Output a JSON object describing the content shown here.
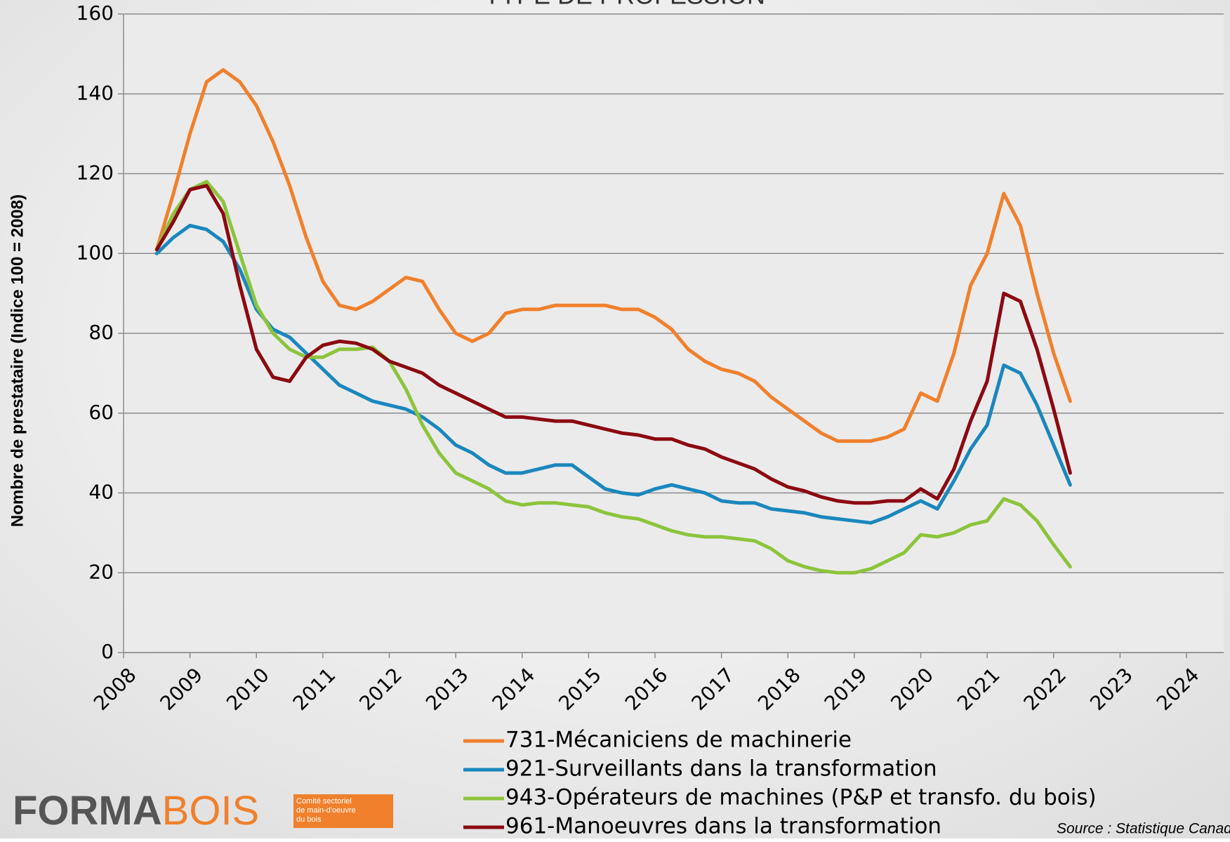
{
  "chart_data": {
    "type": "line",
    "title": "TYPE DE PROFESSION",
    "ylabel": "Nombre de prestataire (Indice 100 = 2008)",
    "x": [
      2008.5,
      2008.75,
      2009,
      2009.25,
      2009.5,
      2009.75,
      2010,
      2010.25,
      2010.5,
      2010.75,
      2011,
      2011.25,
      2011.5,
      2011.75,
      2012,
      2012.25,
      2012.5,
      2012.75,
      2013,
      2013.25,
      2013.5,
      2013.75,
      2014,
      2014.25,
      2014.5,
      2014.75,
      2015,
      2015.25,
      2015.5,
      2015.75,
      2016,
      2016.25,
      2016.5,
      2016.75,
      2017,
      2017.25,
      2017.5,
      2017.75,
      2018,
      2018.25,
      2018.5,
      2018.75,
      2019,
      2019.25,
      2019.5,
      2019.75,
      2020,
      2020.25,
      2020.5,
      2020.75,
      2021,
      2021.25,
      2021.5,
      2021.75,
      2022,
      2022.25
    ],
    "series": [
      {
        "name": "731-Mécaniciens de machinerie",
        "color": "#f0802c",
        "values": [
          101,
          115,
          130,
          143,
          146,
          143,
          137,
          128,
          117,
          104,
          93,
          87,
          86,
          88,
          91,
          94,
          93,
          86,
          80,
          78,
          80,
          85,
          86,
          86,
          87,
          87,
          87,
          87,
          86,
          86,
          84,
          81,
          76,
          73,
          71,
          70,
          68,
          64,
          61,
          58,
          55,
          53,
          53,
          53,
          54,
          56,
          65,
          63,
          75,
          92,
          100,
          115,
          107,
          90,
          75,
          63
        ]
      },
      {
        "name": "921-Surveillants dans la transformation",
        "color": "#1a87bd",
        "values": [
          100,
          104,
          107,
          106,
          103,
          96,
          86,
          81,
          79,
          75,
          71,
          67,
          65,
          63,
          62,
          61,
          59,
          56,
          52,
          50,
          47,
          45,
          45,
          46,
          47,
          47,
          44,
          41,
          40,
          39.5,
          41,
          42,
          41,
          40,
          38,
          37.5,
          37.5,
          36,
          35.5,
          35,
          34,
          33.5,
          33,
          32.5,
          34,
          36,
          38,
          36,
          43,
          51,
          57,
          72,
          70,
          62,
          52,
          42
        ]
      },
      {
        "name": "943-Opérateurs de machines (P&P et transfo. du bois)",
        "color": "#8cc43c",
        "values": [
          101,
          110,
          116,
          118,
          113,
          100,
          87,
          80,
          76,
          74,
          74,
          76,
          76,
          76.5,
          73,
          66,
          57,
          50,
          45,
          43,
          41,
          38,
          37,
          37.5,
          37.5,
          37,
          36.5,
          35,
          34,
          33.5,
          32,
          30.5,
          29.5,
          29,
          29,
          28.5,
          28,
          26,
          23,
          21.5,
          20.5,
          20,
          20,
          21,
          23,
          25,
          29.5,
          29,
          30,
          32,
          33,
          38.5,
          37,
          33,
          27,
          21.5
        ]
      },
      {
        "name": "961-Manoeuvres dans la transformation",
        "color": "#8b0a10",
        "values": [
          101,
          108,
          116,
          117,
          110,
          92,
          76,
          69,
          68,
          74,
          77,
          78,
          77.5,
          76,
          73,
          71.5,
          70,
          67,
          65,
          63,
          61,
          59,
          59,
          58.5,
          58,
          58,
          57,
          56,
          55,
          54.5,
          53.5,
          53.5,
          52,
          51,
          49,
          47.5,
          46,
          43.5,
          41.5,
          40.5,
          39,
          38,
          37.5,
          37.5,
          38,
          38,
          41,
          38.5,
          46,
          58,
          68,
          90,
          88,
          76,
          61,
          45
        ]
      }
    ],
    "xlim": [
      2008,
      2024
    ],
    "xticks": [
      2008,
      2009,
      2010,
      2011,
      2012,
      2013,
      2014,
      2015,
      2016,
      2017,
      2018,
      2019,
      2020,
      2021,
      2022,
      2023,
      2024
    ],
    "ylim": [
      0,
      160
    ],
    "yticks": [
      0,
      20,
      40,
      60,
      80,
      100,
      120,
      140,
      160
    ],
    "grid": true,
    "source": "Source : Statistique Canada"
  },
  "logo": {
    "dark": "FORMA",
    "accent": "BOIS",
    "tagline": [
      "Comité sectoriel",
      "de main-d'oeuvre",
      "du bois"
    ]
  }
}
